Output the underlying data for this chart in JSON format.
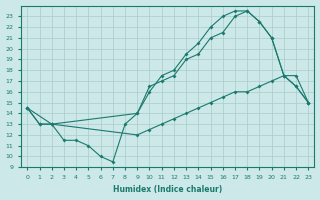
{
  "xlabel": "Humidex (Indice chaleur)",
  "bg_color": "#cce8e8",
  "line_color": "#1a7a6e",
  "grid_color": "#aacccc",
  "xlim": [
    -0.5,
    23.5
  ],
  "ylim": [
    9,
    24
  ],
  "xticks": [
    0,
    1,
    2,
    3,
    4,
    5,
    6,
    7,
    8,
    9,
    10,
    11,
    12,
    13,
    14,
    15,
    16,
    17,
    18,
    19,
    20,
    21,
    22,
    23
  ],
  "yticks": [
    9,
    10,
    11,
    12,
    13,
    14,
    15,
    16,
    17,
    18,
    19,
    20,
    21,
    22,
    23
  ],
  "line1_x": [
    0,
    1,
    2,
    3,
    4,
    5,
    6,
    7,
    8,
    9,
    10,
    11,
    12,
    13,
    14,
    15,
    16,
    17,
    18,
    19,
    20,
    21,
    22,
    23
  ],
  "line1_y": [
    14.5,
    13,
    13,
    11.5,
    11.5,
    11,
    10,
    9.5,
    13,
    14,
    16.5,
    17,
    17.5,
    19,
    19.5,
    21,
    21.5,
    23,
    23.5,
    22.5,
    21,
    17.5,
    16.5,
    15
  ],
  "line2_x": [
    0,
    1,
    2,
    9,
    10,
    11,
    12,
    13,
    14,
    15,
    16,
    17,
    18,
    19,
    20,
    21,
    22,
    23
  ],
  "line2_y": [
    14.5,
    13,
    13,
    14,
    16,
    17.5,
    18,
    19.5,
    20.5,
    22,
    23,
    23.5,
    23.5,
    22.5,
    21,
    17.5,
    16.5,
    15
  ],
  "line3_x": [
    0,
    2,
    9,
    10,
    11,
    12,
    13,
    14,
    15,
    16,
    17,
    18,
    19,
    20,
    21,
    22,
    23
  ],
  "line3_y": [
    14.5,
    13,
    12,
    12.5,
    13,
    13.5,
    14,
    14.5,
    15,
    15.5,
    16,
    16,
    16.5,
    17,
    17.5,
    17.5,
    15
  ]
}
